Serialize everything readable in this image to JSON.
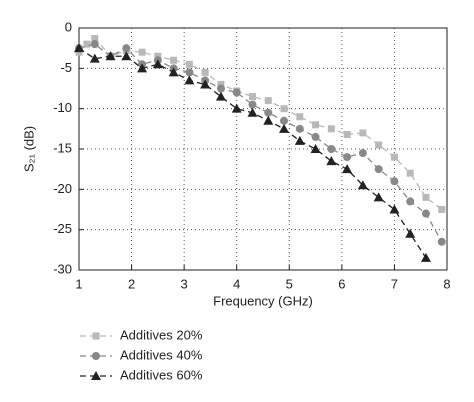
{
  "chart_data": {
    "type": "line",
    "xlabel": "Frequency (GHz)",
    "ylabel": "S₂₁ (dB)",
    "xlim": [
      1,
      8
    ],
    "ylim": [
      -30,
      0
    ],
    "xticks": [
      1,
      2,
      3,
      4,
      5,
      6,
      7,
      8
    ],
    "yticks": [
      0,
      -5,
      -10,
      -15,
      -20,
      -25,
      -30
    ],
    "grid": true,
    "legend": "bottom",
    "series": [
      {
        "name": "Additives 20%",
        "color": "#b8b8b8",
        "marker": "square",
        "dash": "6 4",
        "x": [
          1.0,
          1.15,
          1.3,
          1.6,
          1.9,
          2.2,
          2.5,
          2.8,
          3.1,
          3.4,
          3.7,
          4.0,
          4.3,
          4.6,
          4.9,
          5.2,
          5.5,
          5.8,
          6.1,
          6.4,
          6.7,
          7.0,
          7.3,
          7.6,
          7.9
        ],
        "values": [
          -3,
          -2,
          -1.3,
          -3.5,
          -2.8,
          -3,
          -3.5,
          -4,
          -4.5,
          -5.5,
          -7,
          -7.8,
          -8.5,
          -9,
          -10,
          -11,
          -12,
          -12.5,
          -13.2,
          -13,
          -14.5,
          -16,
          -18,
          -21,
          -22.5
        ]
      },
      {
        "name": "Additives 40%",
        "color": "#888888",
        "marker": "circle",
        "dash": "6 4",
        "x": [
          1.0,
          1.3,
          1.6,
          1.9,
          2.2,
          2.5,
          2.8,
          3.1,
          3.4,
          3.7,
          4.0,
          4.3,
          4.6,
          4.9,
          5.2,
          5.5,
          5.8,
          6.1,
          6.4,
          6.7,
          7.0,
          7.3,
          7.6,
          7.9
        ],
        "values": [
          -2.5,
          -2,
          -3.5,
          -2.5,
          -4.5,
          -4,
          -5,
          -5.5,
          -6.5,
          -7.5,
          -8,
          -9.5,
          -10.5,
          -11.5,
          -12.5,
          -13.5,
          -15,
          -16,
          -15.5,
          -17.5,
          -19,
          -21.5,
          -23,
          -26.5
        ]
      },
      {
        "name": "Additives 60%",
        "color": "#222222",
        "marker": "triangle",
        "dash": "6 4",
        "x": [
          1.0,
          1.3,
          1.6,
          1.9,
          2.2,
          2.5,
          2.8,
          3.1,
          3.4,
          3.7,
          4.0,
          4.3,
          4.6,
          4.9,
          5.2,
          5.5,
          5.8,
          6.1,
          6.4,
          6.7,
          7.0,
          7.3,
          7.6
        ],
        "values": [
          -2.5,
          -3.8,
          -3.5,
          -3.5,
          -5,
          -4.5,
          -5.5,
          -6.5,
          -7,
          -8.5,
          -10,
          -10.5,
          -11.5,
          -12.5,
          -14,
          -15,
          -16.5,
          -17.5,
          -19.5,
          -21,
          -22.5,
          -25.5,
          -28.5
        ]
      }
    ]
  }
}
